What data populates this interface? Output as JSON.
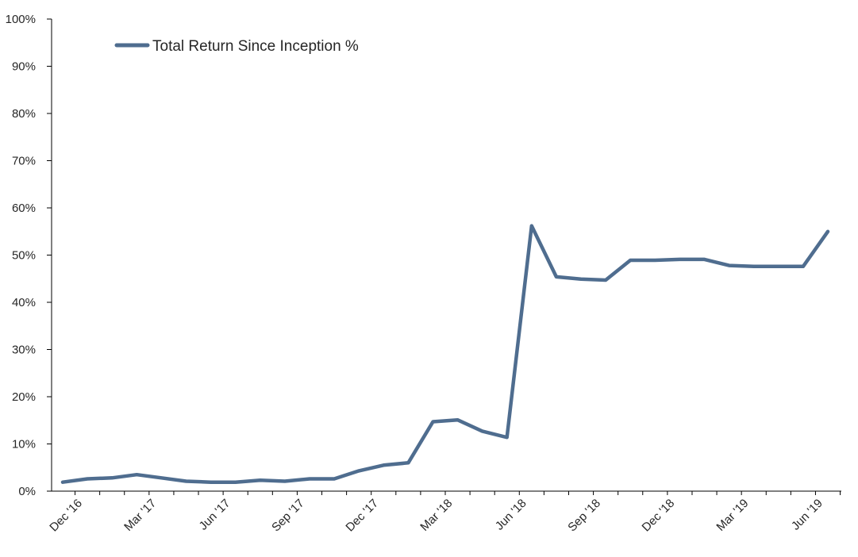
{
  "chart_data": {
    "type": "line",
    "title": "",
    "xlabel": "",
    "ylabel": "",
    "ylim": [
      0,
      100
    ],
    "y_ticks": [
      "0%",
      "10%",
      "20%",
      "30%",
      "40%",
      "50%",
      "60%",
      "70%",
      "80%",
      "90%",
      "100%"
    ],
    "y_tick_values": [
      0,
      10,
      20,
      30,
      40,
      50,
      60,
      70,
      80,
      90,
      100
    ],
    "x_tick_labels": [
      "Dec '16",
      "Mar '17",
      "Jun '17",
      "Sep '17",
      "Dec '17",
      "Mar '18",
      "Jun '18",
      "Sep '18",
      "Dec '18",
      "Mar '19",
      "Jun '19"
    ],
    "x_tick_months": [
      "2016-12",
      "2017-03",
      "2017-06",
      "2017-09",
      "2017-12",
      "2018-03",
      "2018-06",
      "2018-09",
      "2018-12",
      "2019-03",
      "2019-06"
    ],
    "x": [
      "2016-11",
      "2016-12",
      "2017-01",
      "2017-02",
      "2017-03",
      "2017-04",
      "2017-05",
      "2017-06",
      "2017-07",
      "2017-08",
      "2017-09",
      "2017-10",
      "2017-11",
      "2017-12",
      "2018-01",
      "2018-02",
      "2018-03",
      "2018-04",
      "2018-05",
      "2018-06",
      "2018-07",
      "2018-08",
      "2018-09",
      "2018-10",
      "2018-11",
      "2018-12",
      "2019-01",
      "2019-02",
      "2019-03",
      "2019-04",
      "2019-05",
      "2019-06"
    ],
    "series": [
      {
        "name": "Total Return Since Inception %",
        "color": "#4f6d8f",
        "values": [
          1.9,
          2.6,
          2.8,
          3.5,
          2.8,
          2.1,
          1.9,
          1.9,
          2.3,
          2.1,
          2.6,
          2.6,
          4.3,
          5.5,
          6.0,
          14.7,
          15.1,
          12.7,
          11.4,
          56.2,
          45.4,
          44.9,
          44.7,
          48.9,
          48.9,
          49.1,
          49.1,
          47.8,
          47.6,
          47.6,
          47.6,
          55.0
        ]
      }
    ],
    "legend_position": "top-left",
    "grid": false
  }
}
